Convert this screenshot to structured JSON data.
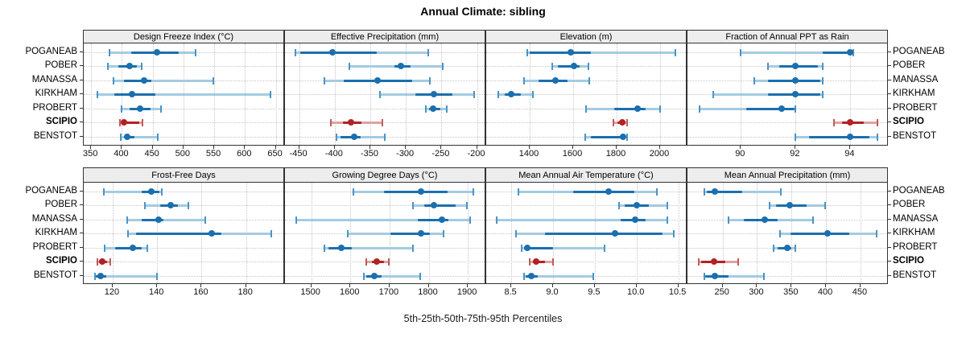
{
  "title": "Annual Climate: sibling",
  "caption": "5th-25th-50th-75th-95th Percentiles",
  "stations": [
    "POGANEAB",
    "POBER",
    "MANASSA",
    "KIRKHAM",
    "PROBERT",
    "SCIPIO",
    "BENSTOT"
  ],
  "highlight_station": "SCIPIO",
  "colors": {
    "normal_dark": "#1b6fae",
    "normal_mid": "#4a94c6",
    "normal_light": "#a4cbe2",
    "highlight_dark": "#b22222",
    "highlight_mid": "#c25a5a",
    "highlight_light": "#dca2a2",
    "panel_border": "#333333",
    "strip_background": "#ededed",
    "gridline": "#c6c6c6"
  },
  "chart_data": {
    "type": "scatter",
    "subtype": "percentile-interval-dotplot",
    "title": "Annual Climate: sibling",
    "xlabel": "5th-25th-50th-75th-95th Percentiles",
    "legend_position": "none",
    "grid": "dotted",
    "percentile_labels": [
      "5th",
      "25th",
      "50th",
      "75th",
      "95th"
    ],
    "stations": [
      "POGANEAB",
      "POBER",
      "MANASSA",
      "KIRKHAM",
      "PROBERT",
      "SCIPIO",
      "BENSTOT"
    ],
    "panels": [
      {
        "title": "Design Freeze Index (°C)",
        "row": 0,
        "col": 0,
        "xlim": [
          338,
          665
        ],
        "ticks": [
          350,
          400,
          450,
          500,
          550,
          600,
          650
        ],
        "tick_labels": [
          "350",
          "400",
          "450",
          "500",
          "550",
          "600",
          "650"
        ],
        "values": [
          [
            380,
            415,
            457,
            492,
            520
          ],
          [
            377,
            394,
            412,
            424,
            432
          ],
          [
            386,
            404,
            436,
            448,
            549
          ],
          [
            360,
            388,
            416,
            455,
            642
          ],
          [
            400,
            412,
            430,
            447,
            464
          ],
          [
            397,
            400,
            404,
            428,
            434
          ],
          [
            398,
            403,
            409,
            421,
            458
          ]
        ]
      },
      {
        "title": "Effective Precipitation (mm)",
        "row": 0,
        "col": 1,
        "xlim": [
          -470,
          -187
        ],
        "ticks": [
          -450,
          -400,
          -350,
          -300,
          -250,
          -200
        ],
        "tick_labels": [
          "-450",
          "-400",
          "-350",
          "-300",
          "-250",
          "-200"
        ],
        "values": [
          [
            -455,
            -448,
            -403,
            -341,
            -269
          ],
          [
            -379,
            -316,
            -307,
            -293,
            -248
          ],
          [
            -414,
            -387,
            -340,
            -291,
            -266
          ],
          [
            -336,
            -287,
            -261,
            -234,
            -204
          ],
          [
            -272,
            -267,
            -262,
            -252,
            -242
          ],
          [
            -406,
            -388,
            -377,
            -362,
            -333
          ],
          [
            -397,
            -392,
            -373,
            -364,
            -330
          ]
        ]
      },
      {
        "title": "Elevation (m)",
        "row": 0,
        "col": 2,
        "xlim": [
          1200,
          2126
        ],
        "ticks": [
          1400,
          1600,
          1800,
          2000
        ],
        "tick_labels": [
          "1400",
          "1600",
          "1800",
          "2000"
        ],
        "values": [
          [
            1390,
            1400,
            1590,
            1680,
            2070
          ],
          [
            1505,
            1530,
            1605,
            1630,
            1670
          ],
          [
            1375,
            1440,
            1520,
            1575,
            1673
          ],
          [
            1255,
            1285,
            1315,
            1360,
            1415
          ],
          [
            1660,
            1790,
            1895,
            1935,
            2000
          ],
          [
            1785,
            1805,
            1827,
            1840,
            1850
          ],
          [
            1657,
            1680,
            1828,
            1838,
            1847
          ]
        ]
      },
      {
        "title": "Fraction of Annual PPT as Rain",
        "row": 0,
        "col": 3,
        "xlim": [
          88.05,
          95.4
        ],
        "ticks": [
          90,
          92,
          94
        ],
        "tick_labels": [
          "90",
          "92",
          "94"
        ],
        "values": [
          [
            90.0,
            93.0,
            94.0,
            94.0,
            94.1
          ],
          [
            91.0,
            91.4,
            92.0,
            92.8,
            93.0
          ],
          [
            90.5,
            91.0,
            92.0,
            92.9,
            93.0
          ],
          [
            89.0,
            91.0,
            92.0,
            92.9,
            93.0
          ],
          [
            88.5,
            90.2,
            91.5,
            91.95,
            92.0
          ],
          [
            93.4,
            93.7,
            94.0,
            94.5,
            95.0
          ],
          [
            92.0,
            92.5,
            94.0,
            94.7,
            95.0
          ]
        ]
      },
      {
        "title": "Frost-Free Days",
        "row": 1,
        "col": 0,
        "xlim": [
          107,
          197.5
        ],
        "ticks": [
          120,
          140,
          160,
          180
        ],
        "tick_labels": [
          "120",
          "140",
          "160",
          "180"
        ],
        "values": [
          [
            116,
            133,
            137.5,
            141,
            142
          ],
          [
            134.5,
            141.5,
            146,
            149.5,
            154
          ],
          [
            126.5,
            133,
            140.5,
            143,
            161.5
          ],
          [
            127,
            130.5,
            164.5,
            169,
            191.5
          ],
          [
            116.5,
            121,
            129,
            133,
            135.5
          ],
          [
            113,
            114,
            115.5,
            117.5,
            119
          ],
          [
            112,
            112.5,
            114.5,
            117,
            140
          ]
        ]
      },
      {
        "title": "Growing Degree Days (°C)",
        "row": 1,
        "col": 1,
        "xlim": [
          1433,
          1947
        ],
        "ticks": [
          1500,
          1600,
          1700,
          1800,
          1900
        ],
        "tick_labels": [
          "1500",
          "1600",
          "1700",
          "1800",
          "1900"
        ],
        "values": [
          [
            1608,
            1685,
            1780,
            1848,
            1915
          ],
          [
            1760,
            1788,
            1813,
            1868,
            1897
          ],
          [
            1462,
            1772,
            1833,
            1850,
            1905
          ],
          [
            1593,
            1703,
            1780,
            1803,
            1838
          ],
          [
            1534,
            1545,
            1576,
            1603,
            1759
          ],
          [
            1640,
            1656,
            1668,
            1686,
            1698
          ],
          [
            1634,
            1641,
            1661,
            1680,
            1779
          ]
        ]
      },
      {
        "title": "Mean Annual Air Temperature (°C)",
        "row": 1,
        "col": 2,
        "xlim": [
          8.2,
          10.61
        ],
        "ticks": [
          8.5,
          9.0,
          9.5,
          10.0,
          10.5
        ],
        "tick_labels": [
          "8.5",
          "9.0",
          "9.5",
          "10.0",
          "10.5"
        ],
        "values": [
          [
            8.59,
            9.24,
            9.67,
            9.97,
            10.24
          ],
          [
            9.79,
            9.86,
            10.0,
            10.15,
            10.37
          ],
          [
            8.33,
            9.81,
            9.98,
            10.11,
            10.37
          ],
          [
            8.56,
            8.9,
            9.74,
            10.31,
            10.45
          ],
          [
            8.62,
            8.65,
            8.69,
            9.0,
            9.62
          ],
          [
            8.72,
            8.76,
            8.8,
            8.9,
            9.0
          ],
          [
            8.65,
            8.67,
            8.74,
            8.82,
            9.48
          ]
        ]
      },
      {
        "title": "Mean Annual Precipitation (mm)",
        "row": 1,
        "col": 3,
        "xlim": [
          199,
          491
        ],
        "ticks": [
          250,
          300,
          350,
          400,
          450
        ],
        "tick_labels": [
          "250",
          "300",
          "350",
          "400",
          "450"
        ],
        "values": [
          [
            224,
            227,
            239,
            279,
            334
          ],
          [
            318,
            328,
            347,
            372,
            399
          ],
          [
            259,
            281,
            311,
            330,
            381
          ],
          [
            333,
            348,
            402,
            434,
            473
          ],
          [
            324,
            330,
            344,
            350,
            355
          ],
          [
            215,
            219,
            237,
            254,
            273
          ],
          [
            223,
            225,
            239,
            258,
            310
          ]
        ]
      }
    ]
  }
}
